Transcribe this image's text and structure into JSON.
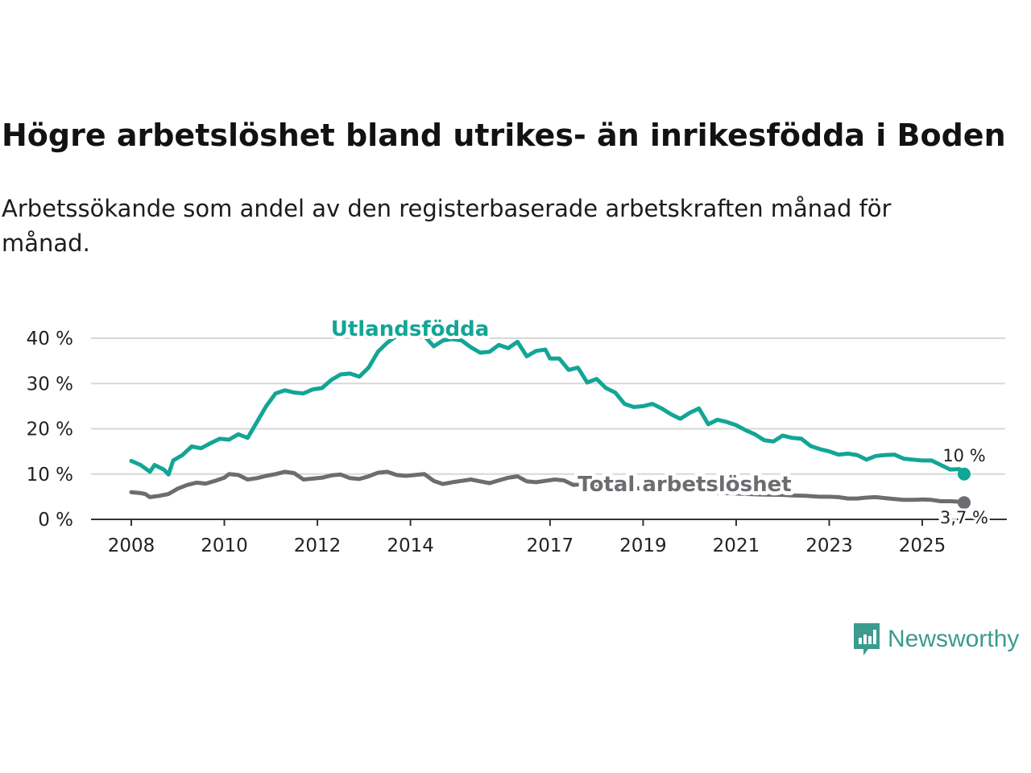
{
  "title": "Högre arbetslöshet bland utrikes- än inrikesfödda i Boden",
  "subtitle": "Arbetssökande som andel av den registerbaserade arbetskraften månad för månad.",
  "brand": "Newsworthy",
  "colors": {
    "foreign": "#13a596",
    "total": "#6d6c70",
    "grid": "#d8d8d8",
    "axis": "#333333",
    "brand": "#3c9a8e"
  },
  "chart_data": {
    "type": "line",
    "title": "Högre arbetslöshet bland utrikes- än inrikesfödda i Boden",
    "xlabel": "",
    "ylabel": "",
    "xlim": [
      2008.0,
      2025.9
    ],
    "ylim": [
      0,
      40
    ],
    "y_ticks": [
      0,
      10,
      20,
      30,
      40
    ],
    "y_tick_labels": [
      "0 %",
      "10 %",
      "20 %",
      "30 %",
      "40 %"
    ],
    "x_ticks": [
      2008,
      2010,
      2012,
      2014,
      2017,
      2019,
      2021,
      2023,
      2025
    ],
    "x_tick_labels": [
      "2008",
      "2010",
      "2012",
      "2014",
      "2017",
      "2019",
      "2021",
      "2023",
      "2025"
    ],
    "grid": true,
    "series": [
      {
        "name": "Utlandsfödda",
        "color_key": "foreign",
        "end_label": "10 %",
        "points": [
          [
            2008.0,
            12.9
          ],
          [
            2008.2,
            12.0
          ],
          [
            2008.4,
            10.5
          ],
          [
            2008.5,
            12.0
          ],
          [
            2008.7,
            11.0
          ],
          [
            2008.8,
            9.9
          ],
          [
            2008.9,
            13.0
          ],
          [
            2009.1,
            14.2
          ],
          [
            2009.3,
            16.1
          ],
          [
            2009.5,
            15.7
          ],
          [
            2009.7,
            16.8
          ],
          [
            2009.9,
            17.8
          ],
          [
            2010.1,
            17.6
          ],
          [
            2010.3,
            18.8
          ],
          [
            2010.5,
            18.0
          ],
          [
            2010.7,
            21.5
          ],
          [
            2010.9,
            25.0
          ],
          [
            2011.1,
            27.8
          ],
          [
            2011.3,
            28.5
          ],
          [
            2011.5,
            28.0
          ],
          [
            2011.7,
            27.8
          ],
          [
            2011.9,
            28.7
          ],
          [
            2012.1,
            29.0
          ],
          [
            2012.3,
            30.8
          ],
          [
            2012.5,
            32.0
          ],
          [
            2012.7,
            32.2
          ],
          [
            2012.9,
            31.5
          ],
          [
            2013.1,
            33.5
          ],
          [
            2013.3,
            37.0
          ],
          [
            2013.5,
            39.0
          ],
          [
            2013.7,
            40.5
          ],
          [
            2013.9,
            41.5
          ],
          [
            2014.1,
            41.0
          ],
          [
            2014.3,
            40.5
          ],
          [
            2014.5,
            38.2
          ],
          [
            2014.7,
            39.5
          ],
          [
            2014.9,
            39.8
          ],
          [
            2015.1,
            39.5
          ],
          [
            2015.3,
            38.0
          ],
          [
            2015.5,
            36.8
          ],
          [
            2015.7,
            37.0
          ],
          [
            2015.9,
            38.5
          ],
          [
            2016.1,
            37.8
          ],
          [
            2016.3,
            39.2
          ],
          [
            2016.5,
            36.0
          ],
          [
            2016.7,
            37.2
          ],
          [
            2016.9,
            37.5
          ],
          [
            2017.0,
            35.5
          ],
          [
            2017.2,
            35.5
          ],
          [
            2017.4,
            33.0
          ],
          [
            2017.6,
            33.5
          ],
          [
            2017.8,
            30.2
          ],
          [
            2018.0,
            31.0
          ],
          [
            2018.2,
            29.0
          ],
          [
            2018.4,
            28.0
          ],
          [
            2018.6,
            25.5
          ],
          [
            2018.8,
            24.8
          ],
          [
            2019.0,
            25.0
          ],
          [
            2019.2,
            25.5
          ],
          [
            2019.4,
            24.5
          ],
          [
            2019.6,
            23.2
          ],
          [
            2019.8,
            22.2
          ],
          [
            2020.0,
            23.5
          ],
          [
            2020.2,
            24.5
          ],
          [
            2020.4,
            21.0
          ],
          [
            2020.6,
            22.0
          ],
          [
            2020.8,
            21.5
          ],
          [
            2021.0,
            20.8
          ],
          [
            2021.2,
            19.7
          ],
          [
            2021.4,
            18.8
          ],
          [
            2021.6,
            17.5
          ],
          [
            2021.8,
            17.2
          ],
          [
            2022.0,
            18.5
          ],
          [
            2022.2,
            18.0
          ],
          [
            2022.4,
            17.8
          ],
          [
            2022.6,
            16.2
          ],
          [
            2022.8,
            15.5
          ],
          [
            2023.0,
            15.0
          ],
          [
            2023.2,
            14.3
          ],
          [
            2023.4,
            14.5
          ],
          [
            2023.6,
            14.2
          ],
          [
            2023.8,
            13.2
          ],
          [
            2024.0,
            14.0
          ],
          [
            2024.2,
            14.2
          ],
          [
            2024.4,
            14.3
          ],
          [
            2024.6,
            13.4
          ],
          [
            2024.8,
            13.2
          ],
          [
            2025.0,
            13.0
          ],
          [
            2025.2,
            13.0
          ],
          [
            2025.4,
            12.0
          ],
          [
            2025.6,
            11.0
          ],
          [
            2025.8,
            11.1
          ],
          [
            2025.9,
            10.0
          ]
        ]
      },
      {
        "name": "Total arbetslöshet",
        "color_key": "total",
        "end_label": "3,7 %",
        "points": [
          [
            2008.0,
            6.0
          ],
          [
            2008.2,
            5.8
          ],
          [
            2008.3,
            5.6
          ],
          [
            2008.4,
            4.9
          ],
          [
            2008.6,
            5.2
          ],
          [
            2008.8,
            5.6
          ],
          [
            2009.0,
            6.8
          ],
          [
            2009.2,
            7.6
          ],
          [
            2009.4,
            8.1
          ],
          [
            2009.6,
            7.9
          ],
          [
            2009.8,
            8.5
          ],
          [
            2010.0,
            9.2
          ],
          [
            2010.1,
            10.0
          ],
          [
            2010.3,
            9.8
          ],
          [
            2010.5,
            8.8
          ],
          [
            2010.7,
            9.1
          ],
          [
            2010.9,
            9.6
          ],
          [
            2011.1,
            10.0
          ],
          [
            2011.3,
            10.5
          ],
          [
            2011.5,
            10.2
          ],
          [
            2011.7,
            8.8
          ],
          [
            2011.9,
            9.0
          ],
          [
            2012.1,
            9.2
          ],
          [
            2012.3,
            9.7
          ],
          [
            2012.5,
            9.9
          ],
          [
            2012.7,
            9.1
          ],
          [
            2012.9,
            8.9
          ],
          [
            2013.1,
            9.5
          ],
          [
            2013.3,
            10.3
          ],
          [
            2013.5,
            10.5
          ],
          [
            2013.7,
            9.8
          ],
          [
            2013.9,
            9.6
          ],
          [
            2014.1,
            9.8
          ],
          [
            2014.3,
            10.0
          ],
          [
            2014.5,
            8.5
          ],
          [
            2014.7,
            7.8
          ],
          [
            2014.9,
            8.2
          ],
          [
            2015.1,
            8.5
          ],
          [
            2015.3,
            8.8
          ],
          [
            2015.5,
            8.4
          ],
          [
            2015.7,
            8.0
          ],
          [
            2015.9,
            8.6
          ],
          [
            2016.1,
            9.2
          ],
          [
            2016.3,
            9.5
          ],
          [
            2016.5,
            8.4
          ],
          [
            2016.7,
            8.2
          ],
          [
            2016.9,
            8.5
          ],
          [
            2017.1,
            8.8
          ],
          [
            2017.3,
            8.6
          ],
          [
            2017.5,
            7.6
          ],
          [
            2017.7,
            7.8
          ],
          [
            2017.9,
            7.5
          ],
          [
            2018.2,
            7.2
          ],
          [
            2018.5,
            7.0
          ],
          [
            2019.0,
            6.8
          ],
          [
            2019.5,
            6.4
          ],
          [
            2020.0,
            6.2
          ],
          [
            2020.5,
            5.9
          ],
          [
            2021.0,
            5.7
          ],
          [
            2021.5,
            5.5
          ],
          [
            2022.0,
            5.4
          ],
          [
            2022.2,
            5.3
          ],
          [
            2022.5,
            5.2
          ],
          [
            2022.8,
            5.0
          ],
          [
            2023.0,
            5.0
          ],
          [
            2023.2,
            4.9
          ],
          [
            2023.4,
            4.6
          ],
          [
            2023.6,
            4.6
          ],
          [
            2023.8,
            4.8
          ],
          [
            2024.0,
            4.9
          ],
          [
            2024.2,
            4.7
          ],
          [
            2024.4,
            4.5
          ],
          [
            2024.6,
            4.3
          ],
          [
            2024.8,
            4.3
          ],
          [
            2025.0,
            4.4
          ],
          [
            2025.2,
            4.3
          ],
          [
            2025.4,
            4.0
          ],
          [
            2025.6,
            4.0
          ],
          [
            2025.8,
            3.9
          ],
          [
            2025.9,
            3.7
          ]
        ]
      }
    ],
    "annotations": {
      "foreign_label": "Utlandsfödda",
      "total_label": "Total arbetslöshet"
    }
  }
}
